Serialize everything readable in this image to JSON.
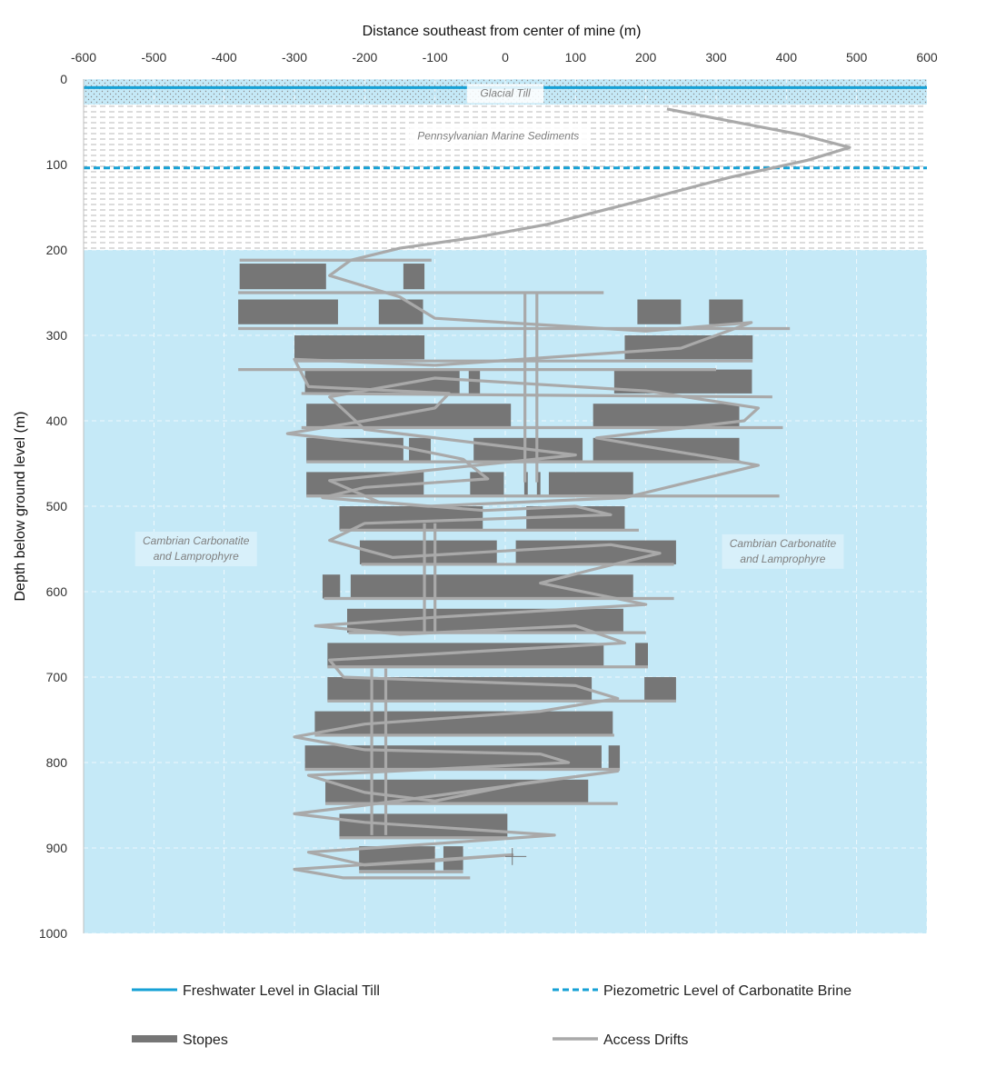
{
  "chart_data": {
    "type": "scatter",
    "title": "",
    "xlabel": "Distance southeast from center of mine (m)",
    "ylabel": "Depth below ground level (m)",
    "xlim": [
      -600,
      600
    ],
    "ylim": [
      0,
      1000
    ],
    "y_inverted": true,
    "x_axis_position": "top",
    "x_ticks": [
      "-600",
      "-500",
      "-400",
      "-300",
      "-200",
      "-100",
      "0",
      "100",
      "200",
      "300",
      "400",
      "500",
      "600"
    ],
    "y_ticks": [
      "0",
      "100",
      "200",
      "300",
      "400",
      "500",
      "600",
      "700",
      "800",
      "900",
      "1000"
    ],
    "grid": true,
    "legend_position": "bottom",
    "colors": {
      "carbonatite": "#c5e9f7",
      "till": "#c5e9f7",
      "freshwater": "#16a1d6",
      "brine": "#16a1d6",
      "stopes": "#767676",
      "drifts": "#a9a9a9"
    },
    "zones": [
      {
        "name": "Glacial Till",
        "top": 0,
        "bottom": 30,
        "pattern": "dots"
      },
      {
        "name": "Pennsylvanian Marine Sediments",
        "top": 30,
        "bottom": 200,
        "pattern": "dashes"
      },
      {
        "name": "Cambrian Carbonatite and Lamprophyre",
        "top": 200,
        "bottom": 1000,
        "pattern": "solid"
      }
    ],
    "annotations": [
      {
        "line1": "Glacial Till",
        "line2": "",
        "x": 0,
        "y": 17
      },
      {
        "line1": "Pennsylvanian Marine Sediments",
        "line2": "",
        "x": -10,
        "y": 67
      },
      {
        "line1": "Cambrian Carbonatite",
        "line2": "and Lamprophyre",
        "x": -440,
        "y": 550
      },
      {
        "line1": "Cambrian Carbonatite",
        "line2": "and Lamprophyre",
        "x": 395,
        "y": 553
      }
    ],
    "levels": [
      {
        "name": "Freshwater Level in Glacial Till",
        "depth": 10,
        "style": "solid"
      },
      {
        "name": "Piezometric Level of Carbonatite Brine",
        "depth": 104,
        "style": "dashed"
      }
    ],
    "series": [
      {
        "name": "Stopes",
        "rects": [
          [
            -378,
            -255,
            216,
            246
          ],
          [
            -145,
            -115,
            216,
            246
          ],
          [
            -380,
            -238,
            258,
            287
          ],
          [
            -180,
            -117,
            258,
            287
          ],
          [
            188,
            250,
            258,
            287
          ],
          [
            290,
            338,
            258,
            287
          ],
          [
            -300,
            -115,
            300,
            328
          ],
          [
            170,
            352,
            300,
            328
          ],
          [
            -285,
            -65,
            340,
            368
          ],
          [
            -52,
            -36,
            340,
            368
          ],
          [
            155,
            351,
            340,
            368
          ],
          [
            -283,
            8,
            380,
            408
          ],
          [
            125,
            333,
            380,
            408
          ],
          [
            -283,
            -145,
            420,
            448
          ],
          [
            -137,
            -106,
            420,
            448
          ],
          [
            -45,
            110,
            420,
            448
          ],
          [
            125,
            333,
            420,
            448
          ],
          [
            -283,
            -116,
            460,
            488
          ],
          [
            -50,
            -2,
            460,
            488
          ],
          [
            27,
            32,
            460,
            488
          ],
          [
            45,
            50,
            460,
            488
          ],
          [
            62,
            182,
            460,
            488
          ],
          [
            -236,
            -32,
            500,
            528
          ],
          [
            30,
            170,
            500,
            528
          ],
          [
            -207,
            -12,
            540,
            568
          ],
          [
            15,
            243,
            540,
            568
          ],
          [
            -260,
            -235,
            580,
            608
          ],
          [
            -220,
            182,
            580,
            608
          ],
          [
            -225,
            168,
            620,
            648
          ],
          [
            -253,
            140,
            660,
            688
          ],
          [
            185,
            203,
            660,
            688
          ],
          [
            -253,
            123,
            700,
            728
          ],
          [
            198,
            243,
            700,
            728
          ],
          [
            -271,
            153,
            740,
            768
          ],
          [
            -285,
            137,
            780,
            808
          ],
          [
            147,
            163,
            780,
            808
          ],
          [
            -256,
            118,
            820,
            848
          ],
          [
            -236,
            3,
            860,
            888
          ],
          [
            -208,
            -100,
            898,
            926
          ],
          [
            -88,
            -60,
            898,
            926
          ]
        ]
      },
      {
        "name": "Access Drifts",
        "ramp": [
          [
            230,
            35
          ],
          [
            420,
            65
          ],
          [
            490,
            80
          ],
          [
            430,
            95
          ],
          [
            320,
            115
          ],
          [
            180,
            145
          ],
          [
            60,
            170
          ],
          [
            -40,
            185
          ],
          [
            -150,
            198
          ],
          [
            -220,
            212
          ],
          [
            -250,
            230
          ],
          [
            -150,
            255
          ],
          [
            -100,
            280
          ],
          [
            200,
            295
          ],
          [
            350,
            285
          ],
          [
            250,
            315
          ],
          [
            -100,
            335
          ],
          [
            -300,
            328
          ],
          [
            -280,
            360
          ],
          [
            -80,
            368
          ],
          [
            -100,
            385
          ],
          [
            -200,
            400
          ],
          [
            -310,
            415
          ],
          [
            -150,
            430
          ],
          [
            -60,
            445
          ],
          [
            -25,
            468
          ],
          [
            -200,
            478
          ],
          [
            -260,
            490
          ],
          [
            -110,
            500
          ],
          [
            170,
            490
          ],
          [
            360,
            452
          ],
          [
            200,
            430
          ],
          [
            130,
            420
          ],
          [
            340,
            400
          ],
          [
            360,
            385
          ],
          [
            200,
            365
          ],
          [
            -100,
            350
          ],
          [
            -250,
            372
          ],
          [
            -200,
            410
          ],
          [
            100,
            440
          ],
          [
            -250,
            470
          ],
          [
            -180,
            495
          ],
          [
            -30,
            505
          ],
          [
            100,
            500
          ],
          [
            150,
            510
          ],
          [
            -200,
            520
          ],
          [
            -250,
            540
          ],
          [
            -160,
            560
          ],
          [
            150,
            545
          ],
          [
            220,
            555
          ],
          [
            120,
            575
          ],
          [
            50,
            590
          ],
          [
            200,
            615
          ],
          [
            -100,
            630
          ],
          [
            -270,
            640
          ],
          [
            -150,
            650
          ],
          [
            100,
            640
          ],
          [
            170,
            660
          ],
          [
            -250,
            680
          ],
          [
            -230,
            700
          ],
          [
            100,
            710
          ],
          [
            160,
            725
          ],
          [
            50,
            740
          ],
          [
            -200,
            755
          ],
          [
            -300,
            770
          ],
          [
            -200,
            785
          ],
          [
            50,
            790
          ],
          [
            90,
            800
          ],
          [
            -280,
            815
          ],
          [
            -200,
            835
          ],
          [
            -100,
            845
          ],
          [
            20,
            825
          ],
          [
            160,
            810
          ],
          [
            -200,
            850
          ],
          [
            -300,
            860
          ],
          [
            -200,
            870
          ],
          [
            70,
            885
          ],
          [
            -100,
            895
          ],
          [
            -280,
            905
          ],
          [
            -200,
            920
          ],
          [
            -100,
            915
          ],
          [
            10,
            908
          ],
          [
            -300,
            925
          ],
          [
            -230,
            935
          ],
          [
            -50,
            935
          ]
        ],
        "drift_lines": [
          [
            -380,
            250
          ],
          [
            -378,
            212
          ],
          [
            -380,
            292
          ],
          [
            -380,
            340
          ],
          [
            -300,
            330
          ],
          [
            -290,
            368
          ],
          [
            -290,
            408
          ],
          [
            -283,
            448
          ],
          [
            -283,
            488
          ],
          [
            -235,
            528
          ],
          [
            -205,
            568
          ],
          [
            -258,
            608
          ],
          [
            -223,
            648
          ],
          [
            -253,
            688
          ],
          [
            -253,
            728
          ],
          [
            -271,
            768
          ],
          [
            -285,
            808
          ],
          [
            -256,
            848
          ],
          [
            -236,
            888
          ],
          [
            -208,
            928
          ]
        ],
        "drift_rights": [
          [
            140,
            250
          ],
          [
            -105,
            212
          ],
          [
            405,
            292
          ],
          [
            300,
            340
          ],
          [
            352,
            330
          ],
          [
            380,
            372
          ],
          [
            395,
            408
          ],
          [
            335,
            448
          ],
          [
            390,
            488
          ],
          [
            190,
            528
          ],
          [
            240,
            568
          ],
          [
            240,
            608
          ],
          [
            200,
            648
          ],
          [
            203,
            688
          ],
          [
            243,
            728
          ],
          [
            155,
            768
          ],
          [
            163,
            808
          ],
          [
            160,
            848
          ],
          [
            3,
            888
          ],
          [
            -60,
            928
          ]
        ],
        "shafts": [
          [
            28,
            250,
            472
          ],
          [
            45,
            250,
            472
          ],
          [
            -115,
            520,
            648
          ],
          [
            -100,
            520,
            648
          ],
          [
            -190,
            690,
            885
          ],
          [
            -170,
            690,
            885
          ]
        ]
      }
    ],
    "legend": [
      {
        "label": "Freshwater Level in Glacial Till",
        "kind": "solid-line"
      },
      {
        "label": "Piezometric Level of Carbonatite Brine",
        "kind": "dashed-line"
      },
      {
        "label": "Stopes",
        "kind": "thick-bar"
      },
      {
        "label": "Access Drifts",
        "kind": "gray-line"
      }
    ]
  }
}
